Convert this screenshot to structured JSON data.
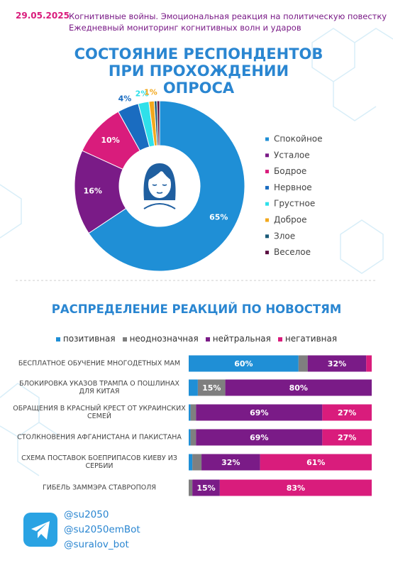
{
  "header": {
    "date": "29.05.2025",
    "line1": "Когнитивные войны. Эмоциональная реакция на политическую повестку",
    "line2": "Ежедневный мониторинг когнитивных волн и ударов"
  },
  "chart_data": [
    {
      "type": "donut",
      "title": "СОСТОЯНИЕ РЕСПОНДЕНТОВ ПРИ ПРОХОЖДЕНИИ ОПРОСА",
      "categories": [
        "Спокойное",
        "Усталое",
        "Бодрое",
        "Нервное",
        "Грустное",
        "Доброе",
        "Злое",
        "Веселое"
      ],
      "values": [
        65,
        16,
        10,
        4,
        2,
        1,
        0.5,
        0.5
      ],
      "value_labels": [
        "65%",
        "16%",
        "10%",
        "4%",
        "2%",
        "1%",
        null,
        null
      ],
      "colors": [
        "#1f8fd6",
        "#7a1b87",
        "#d91c7c",
        "#1a6cc0",
        "#2fe0ea",
        "#f2a81d",
        "#1b5b78",
        "#5b0f42"
      ]
    },
    {
      "type": "stacked-bar-horizontal",
      "title": "РАСПРЕДЕЛЕНИЕ РЕАКЦИЙ ПО НОВОСТЯМ",
      "categories": [
        "БЕСПЛАТНОЕ ОБУЧЕНИЕ МНОГОДЕТНЫХ МАМ",
        "БЛОКИРОВКА УКАЗОВ ТРАМПА О ПОШЛИНАХ ДЛЯ КИТАЯ",
        "ОБРАЩЕНИЯ В КРАСНЫЙ КРЕСТ ОТ УКРАИНСКИХ СЕМЕЙ",
        "СТОЛКНОВЕНИЯ АФГАНИСТАНА И ПАКИСТАНА",
        "СХЕМА ПОСТАВОК БОЕПРИПАСОВ КИЕВУ ИЗ СЕРБИИ",
        "ГИБЕЛЬ ЗАММЭРА СТАВРОПОЛЯ"
      ],
      "xlim": [
        0,
        100
      ],
      "series": [
        {
          "name": "позитивная",
          "color": "#1f8fd6",
          "values": [
            60,
            5,
            1,
            1,
            2,
            0
          ],
          "value_labels": [
            "60%",
            null,
            null,
            null,
            null,
            null
          ]
        },
        {
          "name": "неоднозначная",
          "color": "#7f7f7f",
          "values": [
            5,
            15,
            3,
            3,
            5,
            2
          ],
          "value_labels": [
            null,
            "15%",
            null,
            null,
            null,
            null
          ]
        },
        {
          "name": "нейтральная",
          "color": "#7a1b87",
          "values": [
            32,
            80,
            69,
            69,
            32,
            15
          ],
          "value_labels": [
            "32%",
            "80%",
            "69%",
            "69%",
            "32%",
            "15%"
          ]
        },
        {
          "name": "негативная",
          "color": "#d91c7c",
          "values": [
            3,
            0,
            27,
            27,
            61,
            83
          ],
          "value_labels": [
            null,
            null,
            "27%",
            "27%",
            "61%",
            "83%"
          ]
        }
      ]
    }
  ],
  "footer": {
    "handles": [
      "@su2050",
      "@su2050emBot",
      "@suralov_bot"
    ]
  }
}
